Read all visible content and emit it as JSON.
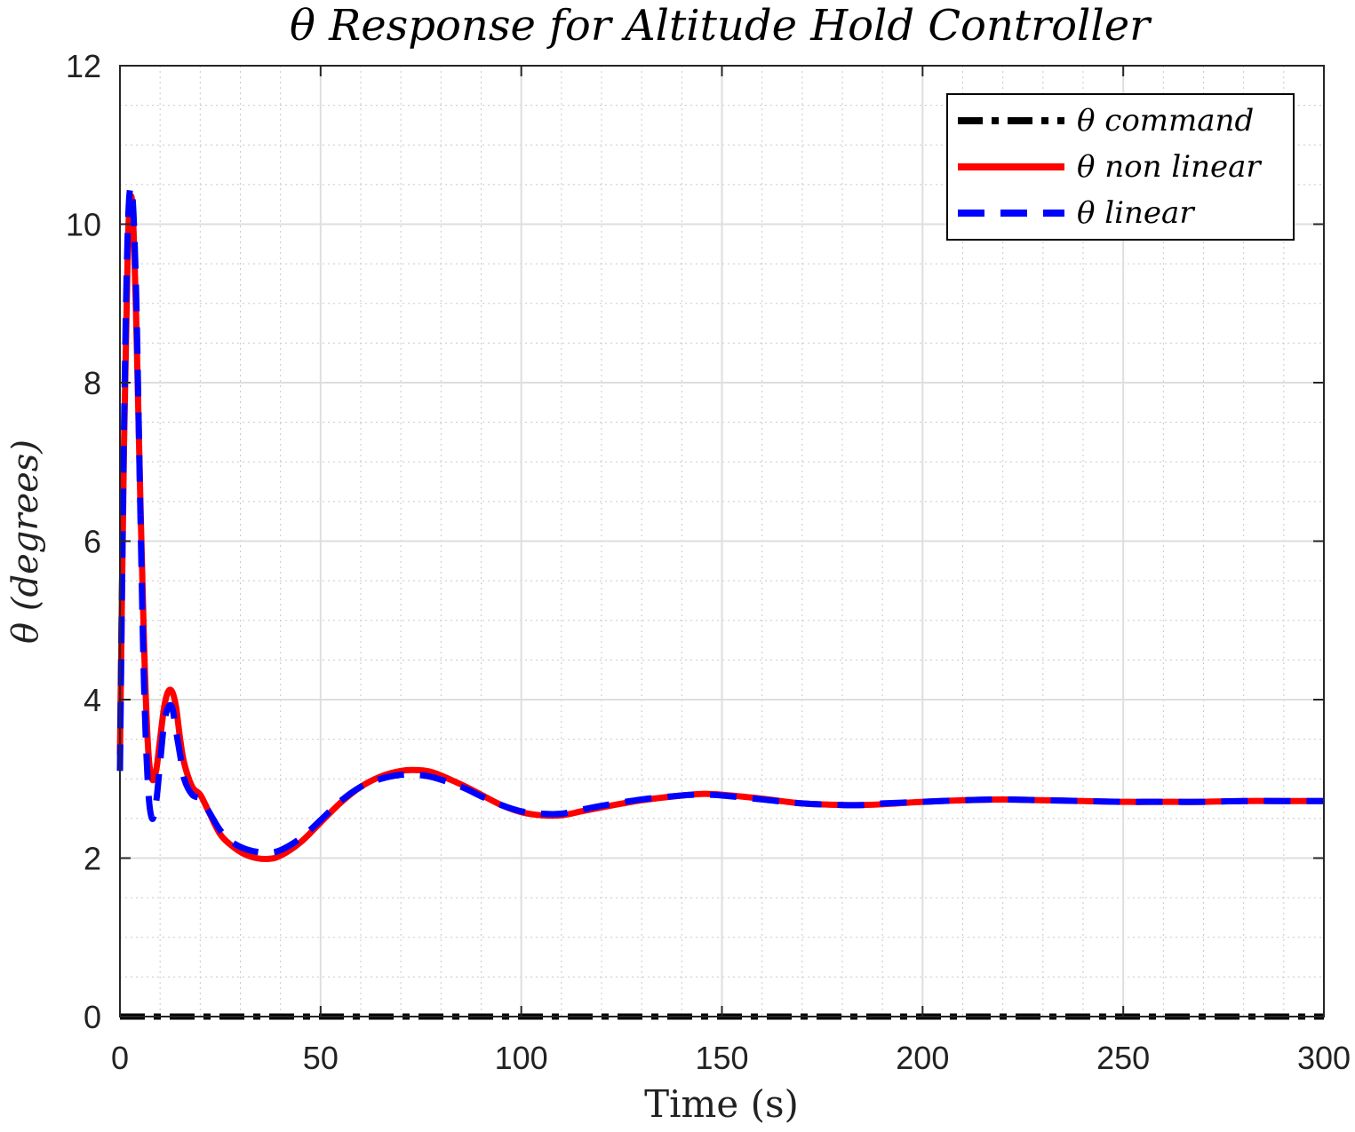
{
  "chart_data": {
    "type": "line",
    "title": "θ Response for Altitude Hold Controller",
    "xlabel": "Time (s)",
    "ylabel": "θ (degrees)",
    "xlim": [
      0,
      300
    ],
    "ylim": [
      0,
      12
    ],
    "xticks": [
      0,
      50,
      100,
      150,
      200,
      250,
      300
    ],
    "yticks": [
      0,
      2,
      4,
      6,
      8,
      10,
      12
    ],
    "grid": true,
    "minor_grid": true,
    "legend_position": "top-right",
    "series": [
      {
        "name": "θ command",
        "color": "#000000",
        "style": "dash-dot",
        "x": [
          0,
          300
        ],
        "y": [
          0,
          0
        ]
      },
      {
        "name": "θ non linear",
        "color": "#ff0000",
        "style": "solid",
        "x": [
          0,
          1,
          2,
          3,
          4,
          5,
          6,
          7,
          8,
          9,
          10,
          11,
          12,
          13,
          14,
          15,
          16,
          18,
          20,
          22,
          25,
          28,
          31,
          34,
          37,
          40,
          45,
          50,
          55,
          60,
          65,
          70,
          74,
          78,
          85,
          90,
          95,
          100,
          105,
          110,
          115,
          120,
          130,
          140,
          145,
          150,
          160,
          170,
          180,
          185,
          190,
          200,
          210,
          220,
          230,
          240,
          250,
          260,
          270,
          280,
          290,
          300
        ],
        "y": [
          3.3,
          7.2,
          9.8,
          10.3,
          8.9,
          6.7,
          4.7,
          3.4,
          3.0,
          3.1,
          3.5,
          3.9,
          4.1,
          4.1,
          3.9,
          3.5,
          3.2,
          2.9,
          2.8,
          2.6,
          2.3,
          2.15,
          2.05,
          2.0,
          1.99,
          2.03,
          2.2,
          2.45,
          2.7,
          2.9,
          3.03,
          3.1,
          3.11,
          3.08,
          2.93,
          2.8,
          2.67,
          2.58,
          2.54,
          2.54,
          2.59,
          2.64,
          2.73,
          2.79,
          2.81,
          2.8,
          2.75,
          2.69,
          2.67,
          2.67,
          2.68,
          2.71,
          2.73,
          2.74,
          2.73,
          2.72,
          2.71,
          2.71,
          2.71,
          2.72,
          2.72,
          2.72
        ]
      },
      {
        "name": "θ linear",
        "color": "#0000ff",
        "style": "dashed",
        "x": [
          0,
          1,
          2,
          3,
          4,
          5,
          6,
          7,
          8,
          9,
          10,
          11,
          12,
          13,
          14,
          15,
          16,
          18,
          20,
          22,
          25,
          28,
          31,
          34,
          37,
          40,
          45,
          50,
          55,
          60,
          65,
          70,
          74,
          78,
          85,
          90,
          95,
          100,
          105,
          110,
          115,
          120,
          130,
          140,
          145,
          150,
          160,
          170,
          180,
          185,
          190,
          200,
          210,
          220,
          230,
          240,
          250,
          260,
          270,
          280,
          290,
          300
        ],
        "y": [
          3.1,
          7.4,
          10.0,
          10.4,
          9.2,
          6.6,
          4.2,
          2.9,
          2.5,
          2.7,
          3.2,
          3.7,
          3.9,
          3.9,
          3.6,
          3.3,
          3.0,
          2.8,
          2.75,
          2.6,
          2.35,
          2.2,
          2.12,
          2.08,
          2.07,
          2.1,
          2.25,
          2.48,
          2.72,
          2.9,
          3.0,
          3.05,
          3.05,
          3.02,
          2.9,
          2.78,
          2.67,
          2.59,
          2.56,
          2.56,
          2.61,
          2.66,
          2.74,
          2.79,
          2.8,
          2.79,
          2.74,
          2.69,
          2.67,
          2.67,
          2.69,
          2.71,
          2.73,
          2.74,
          2.73,
          2.72,
          2.71,
          2.71,
          2.71,
          2.72,
          2.72,
          2.72
        ]
      }
    ]
  }
}
